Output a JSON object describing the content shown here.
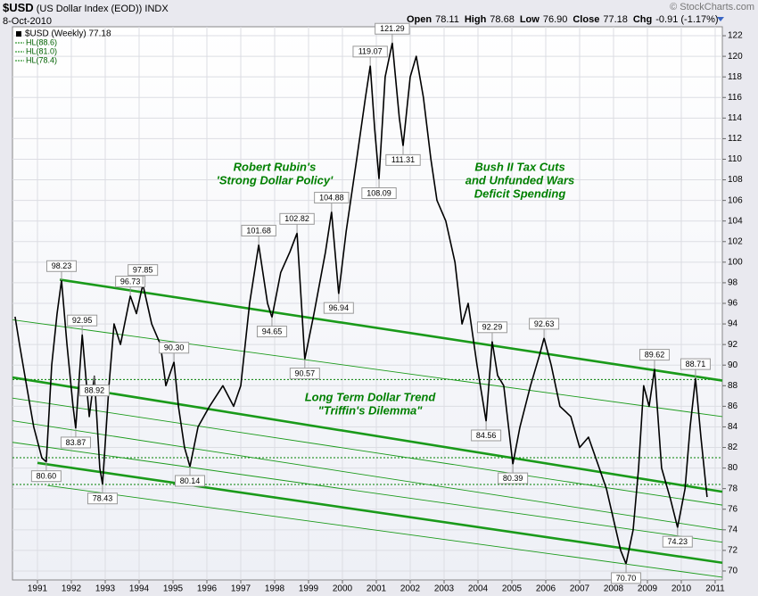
{
  "chart_data": {
    "type": "line",
    "symbol": "$USD",
    "name": "(US Dollar Index (EOD))",
    "exchange": "INDX",
    "date": "8-Oct-2010",
    "credit": "© StockCharts.com",
    "quote": [
      {
        "label": "Open",
        "value": "78.11"
      },
      {
        "label": "High",
        "value": "78.68"
      },
      {
        "label": "Low",
        "value": "76.90"
      },
      {
        "label": "Close",
        "value": "77.18"
      },
      {
        "label": "Chg",
        "value": "-0.91 (-1.17%)"
      }
    ],
    "xlim": [
      1990.263,
      2011.211
    ],
    "ylim": [
      69.13,
      122.87
    ],
    "xticks": [
      1991,
      1992,
      1993,
      1994,
      1995,
      1996,
      1997,
      1998,
      1999,
      2000,
      2001,
      2002,
      2003,
      2004,
      2005,
      2006,
      2007,
      2008,
      2009,
      2010,
      2011
    ],
    "yticks": [
      70,
      72,
      74,
      76,
      78,
      80,
      82,
      84,
      86,
      88,
      90,
      92,
      94,
      96,
      98,
      100,
      102,
      104,
      106,
      108,
      110,
      112,
      114,
      116,
      118,
      120,
      122
    ],
    "grid": true,
    "series": [
      {
        "name": "$USD (Weekly) 77.18",
        "color": "#000000",
        "x": [
          1990.34,
          1990.47,
          1990.68,
          1990.89,
          1991.13,
          1991.26,
          1991.42,
          1991.58,
          1991.71,
          1991.87,
          1992.05,
          1992.13,
          1992.32,
          1992.53,
          1992.68,
          1992.84,
          1992.92,
          1993.11,
          1993.26,
          1993.45,
          1993.74,
          1993.92,
          1994.11,
          1994.37,
          1994.63,
          1994.79,
          1995.03,
          1995.16,
          1995.34,
          1995.5,
          1995.74,
          1996.08,
          1996.47,
          1996.79,
          1997.0,
          1997.26,
          1997.53,
          1997.79,
          1997.92,
          1998.18,
          1998.45,
          1998.66,
          1998.79,
          1998.89,
          1999.16,
          1999.5,
          1999.68,
          1999.89,
          2000.11,
          2000.42,
          2000.68,
          2000.82,
          2000.95,
          2001.08,
          2001.26,
          2001.47,
          2001.68,
          2001.79,
          2002.0,
          2002.18,
          2002.39,
          2002.61,
          2002.79,
          2003.05,
          2003.32,
          2003.53,
          2003.71,
          2003.97,
          2004.24,
          2004.42,
          2004.58,
          2004.76,
          2005.03,
          2005.24,
          2005.55,
          2005.82,
          2005.95,
          2006.16,
          2006.42,
          2006.74,
          2007.0,
          2007.26,
          2007.58,
          2007.79,
          2008.0,
          2008.21,
          2008.37,
          2008.58,
          2008.74,
          2008.89,
          2009.05,
          2009.21,
          2009.42,
          2009.68,
          2009.89,
          2010.11,
          2010.26,
          2010.42,
          2010.58,
          2010.76
        ],
        "values": [
          94.7,
          92,
          88,
          84,
          81,
          80.6,
          90,
          95,
          98.23,
          92,
          86,
          83.87,
          92.95,
          85,
          88.92,
          80,
          78.43,
          88,
          94,
          92,
          96.73,
          95,
          97.85,
          94,
          92,
          88,
          90.3,
          86,
          82,
          80.14,
          84,
          86,
          88,
          86,
          88,
          96,
          101.68,
          96,
          94.65,
          99,
          101,
          102.82,
          96,
          90.57,
          95,
          101,
          104.88,
          96.94,
          103,
          110,
          116,
          119.07,
          113,
          108.09,
          118,
          121.29,
          114,
          111.31,
          118,
          120,
          116,
          110,
          106,
          104,
          100,
          94,
          96,
          90,
          84.56,
          92.29,
          89,
          88,
          80.39,
          84,
          88,
          91,
          92.63,
          90,
          86,
          85,
          82,
          83,
          80,
          78,
          75,
          72,
          70.7,
          74,
          80,
          88,
          86,
          89.62,
          80,
          77,
          74.23,
          78,
          84,
          88.71,
          83,
          77.18
        ]
      }
    ],
    "hlines_color": "#008000",
    "hlines": [
      {
        "name": "HL(88.6)",
        "value": 88.6
      },
      {
        "name": "HL(81.0)",
        "value": 81.0
      },
      {
        "name": "HL(78.4)",
        "value": 78.4
      }
    ],
    "trendline_color": "#1a9a1a",
    "trendlines": [
      {
        "x": [
          1991.66,
          2011.211
        ],
        "y": [
          98.3,
          88.5
        ],
        "weight": "thick"
      },
      {
        "x": [
          1990.263,
          2011.211
        ],
        "y": [
          94.4,
          85.0
        ],
        "weight": "thin"
      },
      {
        "x": [
          1990.263,
          2011.211
        ],
        "y": [
          88.8,
          77.7
        ],
        "weight": "thick"
      },
      {
        "x": [
          1990.263,
          2011.211
        ],
        "y": [
          86.8,
          76.4
        ],
        "weight": "thin"
      },
      {
        "x": [
          1990.263,
          2011.211
        ],
        "y": [
          84.6,
          74.0
        ],
        "weight": "thin"
      },
      {
        "x": [
          1990.263,
          2011.211
        ],
        "y": [
          82.5,
          72.8
        ],
        "weight": "thin"
      },
      {
        "x": [
          1991.0,
          2011.211
        ],
        "y": [
          80.5,
          70.8
        ],
        "weight": "thick"
      },
      {
        "x": [
          1991.3,
          2011.211
        ],
        "y": [
          78.3,
          69.4
        ],
        "weight": "thin"
      }
    ],
    "annotations": [
      {
        "text": "98.23",
        "x": 1991.71,
        "y": 98.23,
        "position": "above"
      },
      {
        "text": "80.60",
        "x": 1991.26,
        "y": 80.6,
        "position": "below"
      },
      {
        "text": "92.95",
        "x": 1992.32,
        "y": 92.95,
        "position": "above"
      },
      {
        "text": "83.87",
        "x": 1992.13,
        "y": 83.87,
        "position": "below"
      },
      {
        "text": "88.92",
        "x": 1992.68,
        "y": 88.92,
        "position": "below"
      },
      {
        "text": "78.43",
        "x": 1992.92,
        "y": 78.43,
        "position": "below"
      },
      {
        "text": "96.73",
        "x": 1993.74,
        "y": 96.73,
        "position": "above"
      },
      {
        "text": "97.85",
        "x": 1994.11,
        "y": 97.85,
        "position": "above"
      },
      {
        "text": "90.30",
        "x": 1995.03,
        "y": 90.3,
        "position": "above"
      },
      {
        "text": "80.14",
        "x": 1995.5,
        "y": 80.14,
        "position": "below"
      },
      {
        "text": "101.68",
        "x": 1997.53,
        "y": 101.68,
        "position": "above"
      },
      {
        "text": "94.65",
        "x": 1997.92,
        "y": 94.65,
        "position": "below"
      },
      {
        "text": "102.82",
        "x": 1998.66,
        "y": 102.82,
        "position": "above"
      },
      {
        "text": "90.57",
        "x": 1998.89,
        "y": 90.57,
        "position": "below"
      },
      {
        "text": "104.88",
        "x": 1999.68,
        "y": 104.88,
        "position": "above"
      },
      {
        "text": "96.94",
        "x": 1999.89,
        "y": 96.94,
        "position": "below"
      },
      {
        "text": "119.07",
        "x": 2000.82,
        "y": 119.07,
        "position": "above"
      },
      {
        "text": "108.09",
        "x": 2001.08,
        "y": 108.09,
        "position": "below"
      },
      {
        "text": "121.29",
        "x": 2001.47,
        "y": 121.29,
        "position": "above"
      },
      {
        "text": "111.31",
        "x": 2001.79,
        "y": 111.31,
        "position": "below"
      },
      {
        "text": "84.56",
        "x": 2004.24,
        "y": 84.56,
        "position": "below"
      },
      {
        "text": "92.29",
        "x": 2004.42,
        "y": 92.29,
        "position": "above"
      },
      {
        "text": "80.39",
        "x": 2005.03,
        "y": 80.39,
        "position": "below"
      },
      {
        "text": "92.63",
        "x": 2005.95,
        "y": 92.63,
        "position": "above"
      },
      {
        "text": "70.70",
        "x": 2008.37,
        "y": 70.7,
        "position": "below"
      },
      {
        "text": "89.62",
        "x": 2009.21,
        "y": 89.62,
        "position": "above"
      },
      {
        "text": "74.23",
        "x": 2009.89,
        "y": 74.23,
        "position": "below"
      },
      {
        "text": "88.71",
        "x": 2010.42,
        "y": 88.71,
        "position": "above"
      }
    ],
    "notes": [
      [
        "Robert Rubin's",
        "'Strong Dollar Policy'"
      ],
      [
        "Bush II Tax Cuts",
        "and Unfunded Wars",
        "Deficit Spending"
      ],
      [
        "Long Term Dollar Trend",
        "\"Triffin's Dilemma\""
      ]
    ]
  }
}
